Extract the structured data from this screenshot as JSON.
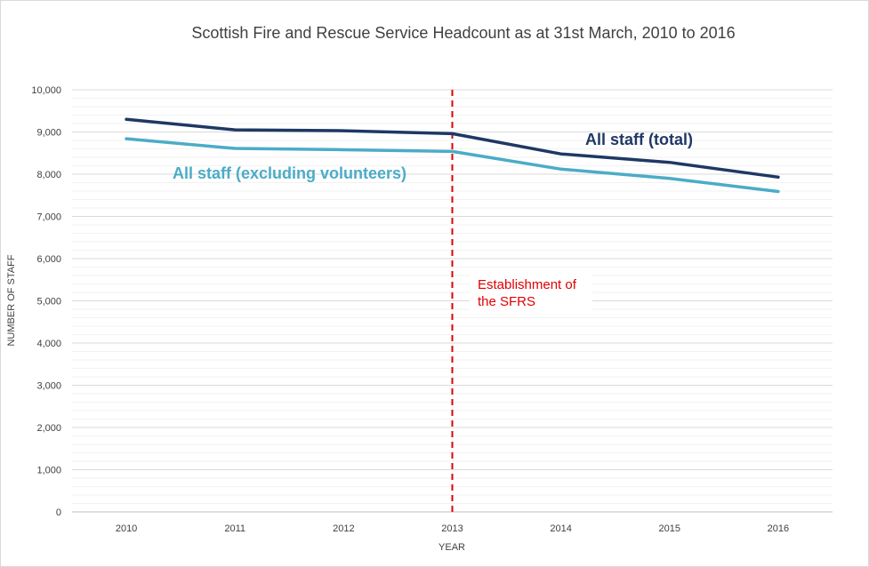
{
  "chart_data": {
    "type": "line",
    "title": "Scottish Fire and Rescue Service Headcount as at 31st March, 2010 to 2016",
    "xlabel": "YEAR",
    "ylabel": "NUMBER OF STAFF",
    "categories": [
      "2010",
      "2011",
      "2012",
      "2013",
      "2014",
      "2015",
      "2016"
    ],
    "ylim": [
      0,
      10000
    ],
    "yticks": [
      0,
      1000,
      2000,
      3000,
      4000,
      5000,
      6000,
      7000,
      8000,
      9000,
      10000
    ],
    "ytick_labels": [
      "0",
      "1,000",
      "2,000",
      "3,000",
      "4,000",
      "5,000",
      "6,000",
      "7,000",
      "8,000",
      "9,000",
      "10,000"
    ],
    "grid": true,
    "series": [
      {
        "name": "All staff (total)",
        "color": "#1f3864",
        "values": [
          9300,
          9050,
          9030,
          8960,
          8480,
          8280,
          7930
        ]
      },
      {
        "name": "All staff (excluding volunteers)",
        "color": "#4bacc6",
        "values": [
          8840,
          8610,
          8580,
          8540,
          8120,
          7900,
          7590
        ]
      }
    ],
    "annotation": {
      "text_line1": "Establishment of",
      "text_line2": "the SFRS",
      "at_category": "2013",
      "color": "#e00000"
    }
  }
}
